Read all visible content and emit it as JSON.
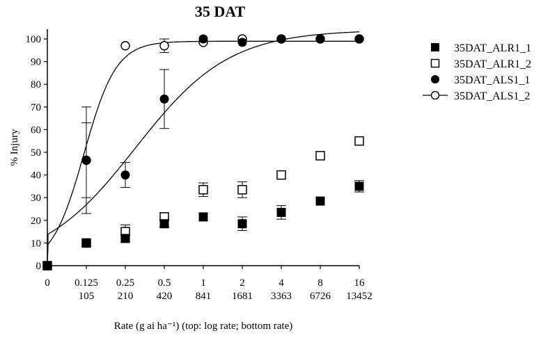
{
  "chart_data": {
    "type": "scatter",
    "title": "35 DAT",
    "ylabel": "% Injury",
    "xlabel": "Rate (g ai ha⁻¹) (top: log rate; bottom rate)",
    "ylim": [
      0,
      100
    ],
    "yticks": [
      0,
      10,
      20,
      30,
      40,
      50,
      60,
      70,
      80,
      90,
      100
    ],
    "x_ticks_top": [
      "0",
      "0.125",
      "0.25",
      "0.5",
      "1",
      "2",
      "4",
      "8",
      "16"
    ],
    "x_ticks_bottom": [
      "",
      "105",
      "210",
      "420",
      "841",
      "1681",
      "3363",
      "6726",
      "13452"
    ],
    "legend_position": "right",
    "series": [
      {
        "name": "35DAT_ALR1_1",
        "marker": "filled-square",
        "values": [
          0,
          10,
          12,
          18.5,
          21.5,
          18.5,
          23.5,
          28.5,
          35
        ],
        "errors": [
          null,
          null,
          1.5,
          1.5,
          null,
          3.0,
          3.0,
          null,
          2.5
        ]
      },
      {
        "name": "35DAT_ALR1_2",
        "marker": "open-square",
        "values": [
          0,
          10,
          15,
          21.5,
          33.5,
          33.5,
          40,
          48.5,
          55
        ],
        "errors": [
          null,
          null,
          3.0,
          null,
          3.0,
          3.5,
          null,
          null,
          null
        ]
      },
      {
        "name": "35DAT_ALS1_1",
        "marker": "filled-circle",
        "values": [
          0,
          46.5,
          40,
          73.5,
          100,
          98.5,
          100,
          100,
          100
        ],
        "errors": [
          null,
          23.5,
          5.5,
          13.0,
          null,
          null,
          null,
          null,
          null
        ]
      },
      {
        "name": "35DAT_ALS1_2",
        "marker": "open-circle",
        "values": [
          0,
          46.5,
          97,
          97,
          98.5,
          100,
          100,
          100,
          100
        ],
        "errors": [
          null,
          16.5,
          null,
          3.0,
          null,
          null,
          null,
          null,
          null
        ]
      }
    ],
    "fit_curves": [
      {
        "series": "35DAT_ALS1_2",
        "top": 99,
        "ec50": 0.12,
        "hill": 3.5
      },
      {
        "series": "35DAT_ALS1_1",
        "top": 104,
        "ec50": 0.3,
        "hill": 1.2
      }
    ]
  }
}
